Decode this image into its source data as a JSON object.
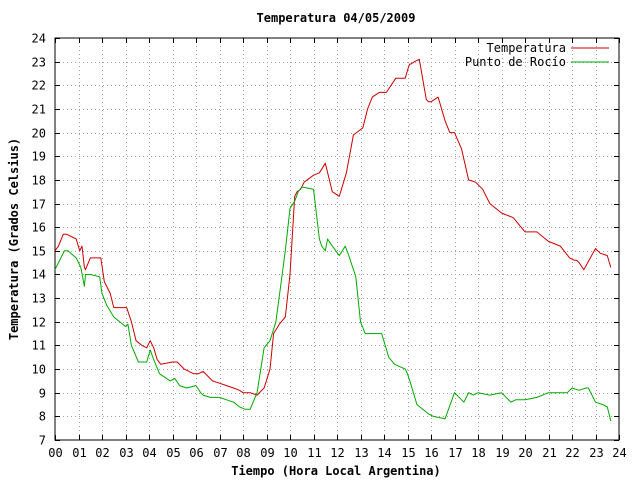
{
  "chart_data": {
    "type": "line",
    "title": "Temperatura 04/05/2009",
    "xlabel": "Tiempo (Hora Local Argentina)",
    "ylabel": "Temperatura (Grados Celsius)",
    "xlim": [
      0,
      24
    ],
    "ylim": [
      7,
      24
    ],
    "x_ticks": [
      "00",
      "01",
      "02",
      "03",
      "04",
      "05",
      "06",
      "07",
      "08",
      "09",
      "10",
      "11",
      "12",
      "13",
      "14",
      "15",
      "16",
      "17",
      "18",
      "19",
      "20",
      "21",
      "22",
      "23",
      "24"
    ],
    "y_ticks": [
      "7",
      "8",
      "9",
      "10",
      "11",
      "12",
      "13",
      "14",
      "15",
      "16",
      "17",
      "18",
      "19",
      "20",
      "21",
      "22",
      "23",
      "24"
    ],
    "grid": true,
    "legend_position": "top-right",
    "series": [
      {
        "name": "Temperatura",
        "color": "#cc0000",
        "x": [
          0,
          0.15,
          0.35,
          0.5,
          0.9,
          1.05,
          1.15,
          1.25,
          1.3,
          1.5,
          1.95,
          2.1,
          2.35,
          2.5,
          3.05,
          3.25,
          3.45,
          3.7,
          3.9,
          4.05,
          4.2,
          4.35,
          4.5,
          5.0,
          5.2,
          5.5,
          5.9,
          6.1,
          6.3,
          6.7,
          7.0,
          7.3,
          7.6,
          7.85,
          8.0,
          8.3,
          8.6,
          8.9,
          9.15,
          9.3,
          9.55,
          9.8,
          10.0,
          10.2,
          10.3,
          10.45,
          10.6,
          11.0,
          11.25,
          11.5,
          11.8,
          12.1,
          12.4,
          12.7,
          13.1,
          13.3,
          13.5,
          13.8,
          14.1,
          14.5,
          14.9,
          15.05,
          15.1,
          15.15,
          15.3,
          15.5,
          15.8,
          15.9,
          16.0,
          16.3,
          16.6,
          16.8,
          17.0,
          17.3,
          17.6,
          17.9,
          18.2,
          18.5,
          19.0,
          19.5,
          20.0,
          20.5,
          21.0,
          21.5,
          21.9,
          22.1,
          22.2,
          22.3,
          22.5,
          23.0,
          23.2,
          23.5,
          23.65
        ],
        "values": [
          15.0,
          15.2,
          15.7,
          15.7,
          15.5,
          15.0,
          15.2,
          14.3,
          14.2,
          14.7,
          14.7,
          13.7,
          13.2,
          12.6,
          12.6,
          12.0,
          11.2,
          11.0,
          10.9,
          11.2,
          10.9,
          10.4,
          10.2,
          10.3,
          10.3,
          10.0,
          9.8,
          9.8,
          9.9,
          9.5,
          9.4,
          9.3,
          9.2,
          9.1,
          9.0,
          9.0,
          8.9,
          9.2,
          10.0,
          11.5,
          11.9,
          12.2,
          14.0,
          17.3,
          17.5,
          17.6,
          17.9,
          18.2,
          18.3,
          18.7,
          17.5,
          17.3,
          18.3,
          19.9,
          20.2,
          21.0,
          21.5,
          21.7,
          21.7,
          22.3,
          22.3,
          22.8,
          22.9,
          22.9,
          23.0,
          23.1,
          21.4,
          21.3,
          21.3,
          21.5,
          20.5,
          20.0,
          20.0,
          19.3,
          18.0,
          17.9,
          17.6,
          17.0,
          16.6,
          16.4,
          15.8,
          15.8,
          15.4,
          15.2,
          14.7,
          14.6,
          14.6,
          14.5,
          14.2,
          15.1,
          14.9,
          14.8,
          14.3
        ]
      },
      {
        "name": "Punto de Rocío",
        "color": "#00aa00",
        "x": [
          0,
          0.15,
          0.4,
          0.55,
          0.9,
          1.1,
          1.25,
          1.3,
          1.5,
          1.9,
          2.0,
          2.2,
          2.5,
          3.0,
          3.1,
          3.25,
          3.55,
          3.9,
          4.05,
          4.2,
          4.45,
          4.9,
          5.1,
          5.3,
          5.6,
          6.0,
          6.2,
          6.3,
          6.6,
          7.0,
          7.3,
          7.6,
          7.85,
          8.1,
          8.3,
          8.6,
          8.9,
          9.15,
          9.4,
          9.6,
          9.8,
          10.0,
          10.2,
          10.35,
          10.5,
          11.0,
          11.25,
          11.35,
          11.5,
          11.6,
          11.8,
          12.1,
          12.35,
          12.5,
          12.8,
          13.0,
          13.2,
          13.5,
          13.9,
          14.2,
          14.45,
          14.9,
          15.0,
          15.1,
          15.25,
          15.4,
          15.9,
          16.1,
          16.6,
          17.0,
          17.4,
          17.6,
          17.8,
          18.0,
          18.5,
          19.0,
          19.4,
          19.6,
          20.0,
          20.5,
          21.0,
          21.5,
          21.8,
          22.0,
          22.3,
          22.6,
          22.7,
          23.0,
          23.3,
          23.5,
          23.65
        ],
        "values": [
          14.2,
          14.5,
          15.0,
          15.0,
          14.7,
          14.3,
          13.5,
          14.0,
          14.0,
          13.9,
          13.2,
          12.7,
          12.2,
          11.8,
          11.9,
          11.0,
          10.3,
          10.3,
          10.8,
          10.4,
          9.8,
          9.5,
          9.6,
          9.3,
          9.2,
          9.3,
          9.0,
          8.9,
          8.8,
          8.8,
          8.7,
          8.6,
          8.4,
          8.3,
          8.3,
          9.0,
          10.9,
          11.2,
          12.0,
          13.5,
          15.0,
          16.8,
          17.1,
          17.5,
          17.7,
          17.6,
          15.5,
          15.2,
          15.0,
          15.5,
          15.2,
          14.8,
          15.2,
          14.8,
          13.9,
          12.0,
          11.5,
          11.5,
          11.5,
          10.5,
          10.2,
          10.0,
          9.8,
          9.5,
          9.0,
          8.5,
          8.1,
          8.0,
          7.9,
          9.0,
          8.6,
          9.0,
          8.9,
          9.0,
          8.9,
          9.0,
          8.6,
          8.7,
          8.7,
          8.8,
          9.0,
          9.0,
          9.0,
          9.2,
          9.1,
          9.2,
          9.2,
          8.6,
          8.5,
          8.4,
          7.8
        ]
      }
    ]
  }
}
